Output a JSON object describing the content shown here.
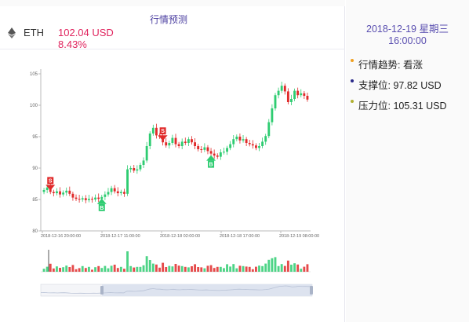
{
  "header": {
    "title": "行情预测"
  },
  "ticker": {
    "name": "ETH",
    "price": "102.04 USD",
    "change": "8.43%",
    "icon": "ethereum-icon"
  },
  "sidebar": {
    "datetime_line1": "2018-12-19 星期三",
    "datetime_line2": "16:00:00",
    "items": [
      {
        "label": "行情趋势: 看涨",
        "dot_color": "#f0a020"
      },
      {
        "label": "支撑位: 97.82 USD",
        "dot_color": "#2a2a8a"
      },
      {
        "label": "压力位: 105.31 USD",
        "dot_color": "#b0b030"
      }
    ]
  },
  "colors": {
    "up": "#2ecc71",
    "down": "#e02a2a",
    "accent": "#5a4fb0"
  },
  "chart_data": {
    "type": "candlestick",
    "ylim": [
      80,
      105
    ],
    "yticks": [
      "80",
      "85",
      "90",
      "95",
      "100",
      "105"
    ],
    "xticks": [
      "2018-12-16 20:00:00",
      "2018-12-17 11:00:00",
      "2018-12-18 02:00:00",
      "2018-12-18 17:00:00",
      "2018-12-19 08:00:00"
    ],
    "closes": [
      86.5,
      86.9,
      86.2,
      86.0,
      86.3,
      85.8,
      86.1,
      86.4,
      85.9,
      85.3,
      85.1,
      85.0,
      85.2,
      84.9,
      85.1,
      85.0,
      85.3,
      85.1,
      85.4,
      85.8,
      86.2,
      86.8,
      86.3,
      86.0,
      86.2,
      85.9,
      89.8,
      90.0,
      89.6,
      89.8,
      90.5,
      91.2,
      93.5,
      95.5,
      96.4,
      95.2,
      95.0,
      94.1,
      93.6,
      94.0,
      94.8,
      93.8,
      93.5,
      94.2,
      94.0,
      94.6,
      94.1,
      93.5,
      93.0,
      92.9,
      93.3,
      92.7,
      92.3,
      92.0,
      91.8,
      92.5,
      92.6,
      93.2,
      93.8,
      94.6,
      95.0,
      94.4,
      94.6,
      94.0,
      93.8,
      93.6,
      93.2,
      93.5,
      94.2,
      95.1,
      97.3,
      99.5,
      101.6,
      102.3,
      103.1,
      102.2,
      100.5,
      101.0,
      102.3,
      101.6,
      101.9,
      101.5,
      100.9
    ],
    "signals": [
      {
        "index": 2,
        "label": "S"
      },
      {
        "index": 18,
        "label": "B"
      },
      {
        "index": 37,
        "label": "S"
      },
      {
        "index": 52,
        "label": "B"
      }
    ]
  }
}
